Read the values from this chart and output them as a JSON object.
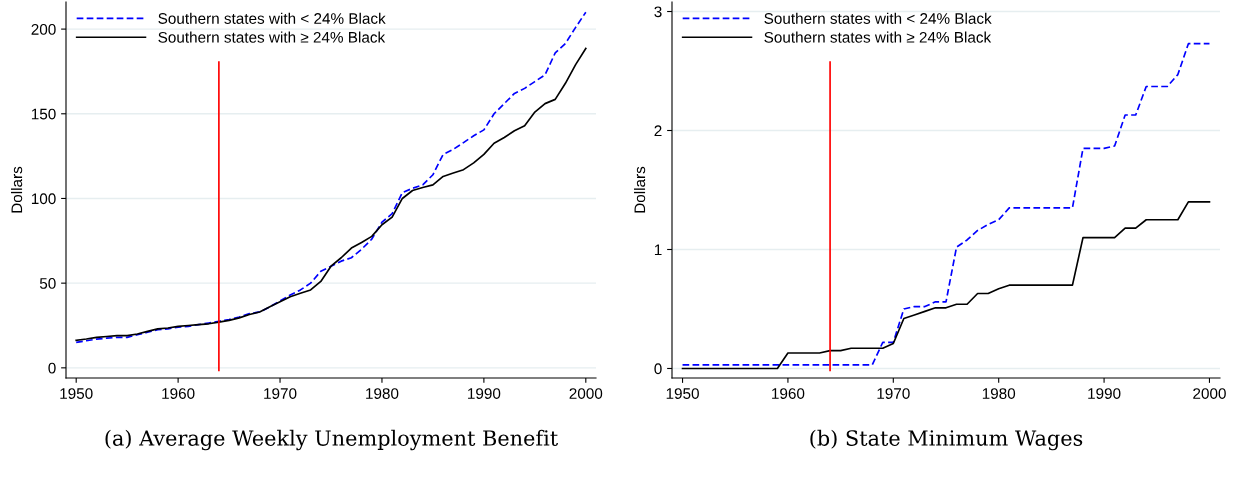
{
  "chart_data": [
    {
      "type": "line",
      "annotations": [
        "(a) Average Weekly Unemployment Benefit"
      ],
      "ylabel": "Dollars",
      "x": [
        1950,
        1951,
        1952,
        1953,
        1954,
        1955,
        1956,
        1957,
        1958,
        1959,
        1960,
        1961,
        1962,
        1963,
        1964,
        1965,
        1966,
        1967,
        1968,
        1969,
        1970,
        1971,
        1972,
        1973,
        1974,
        1975,
        1976,
        1977,
        1978,
        1979,
        1980,
        1981,
        1982,
        1983,
        1984,
        1985,
        1986,
        1987,
        1988,
        1989,
        1990,
        1991,
        1992,
        1993,
        1994,
        1995,
        1996,
        1997,
        1998,
        1999,
        2000
      ],
      "series": [
        {
          "name": "Southern states with < 24% Black",
          "color": "#0000ff",
          "line_style": "dashed",
          "values": [
            15,
            16,
            17,
            17.5,
            18,
            18,
            19.5,
            21,
            22.5,
            23,
            24,
            24.5,
            25.5,
            26.5,
            27.5,
            28.5,
            30,
            32,
            33,
            36,
            39.5,
            43,
            46,
            50,
            57,
            60,
            63,
            65,
            70,
            76,
            86,
            91,
            103.5,
            106,
            108,
            114,
            126,
            129,
            133,
            137,
            140.5,
            150,
            156,
            162,
            165,
            169,
            173,
            186,
            191.5,
            201,
            210
          ]
        },
        {
          "name": "Southern states with ≥ 24% Black",
          "color": "#000000",
          "line_style": "solid",
          "values": [
            16.3,
            17,
            18,
            18.5,
            19,
            19,
            20,
            21.5,
            23,
            23.5,
            24.5,
            25,
            25.5,
            26,
            27,
            28,
            29.5,
            31.5,
            33,
            36,
            39,
            42,
            44,
            46,
            51,
            60,
            65,
            70.7,
            74,
            77.6,
            84.5,
            89,
            100,
            104.7,
            106.5,
            108,
            113,
            115,
            117,
            121,
            126,
            132.6,
            136,
            140,
            143,
            151,
            156,
            158.5,
            168,
            179,
            188.6
          ]
        }
      ],
      "xlim": [
        1949,
        2001
      ],
      "xticks": [
        1950,
        1960,
        1970,
        1980,
        1990,
        2000
      ],
      "ylim": [
        -6,
        216
      ],
      "yticks": [
        0,
        50,
        100,
        150,
        200
      ],
      "ref_lines": [
        {
          "axis": "x",
          "value": 1964,
          "color": "#ff0000"
        }
      ],
      "grid": "y",
      "legend": "top left"
    },
    {
      "type": "line",
      "annotations": [
        "(b) State Minimum Wages"
      ],
      "ylabel": "Dollars",
      "x": [
        1950,
        1951,
        1952,
        1953,
        1954,
        1955,
        1956,
        1957,
        1958,
        1959,
        1960,
        1961,
        1962,
        1963,
        1964,
        1965,
        1966,
        1967,
        1968,
        1969,
        1970,
        1971,
        1972,
        1973,
        1974,
        1975,
        1976,
        1977,
        1978,
        1979,
        1980,
        1981,
        1982,
        1983,
        1984,
        1985,
        1986,
        1987,
        1988,
        1989,
        1990,
        1991,
        1992,
        1993,
        1994,
        1995,
        1996,
        1997,
        1998,
        1999,
        2000
      ],
      "series": [
        {
          "name": "Southern states with < 24% Black",
          "color": "#0000ff",
          "line_style": "dashed",
          "values": [
            0.03,
            0.03,
            0.03,
            0.03,
            0.03,
            0.03,
            0.03,
            0.03,
            0.03,
            0.03,
            0.03,
            0.03,
            0.03,
            0.03,
            0.03,
            0.03,
            0.03,
            0.03,
            0.03,
            0.22,
            0.22,
            0.5,
            0.52,
            0.52,
            0.56,
            0.56,
            1.02,
            1.08,
            1.16,
            1.21,
            1.25,
            1.35,
            1.35,
            1.35,
            1.35,
            1.35,
            1.35,
            1.35,
            1.85,
            1.85,
            1.85,
            1.87,
            2.13,
            2.13,
            2.37,
            2.37,
            2.37,
            2.47,
            2.73,
            2.73,
            2.73
          ]
        },
        {
          "name": "Southern states with ≥ 24% Black",
          "color": "#000000",
          "line_style": "solid",
          "values": [
            0,
            0,
            0,
            0,
            0,
            0,
            0,
            0,
            0,
            0,
            0.13,
            0.13,
            0.13,
            0.13,
            0.15,
            0.15,
            0.17,
            0.17,
            0.17,
            0.17,
            0.21,
            0.42,
            0.45,
            0.48,
            0.51,
            0.51,
            0.54,
            0.54,
            0.63,
            0.63,
            0.67,
            0.7,
            0.7,
            0.7,
            0.7,
            0.7,
            0.7,
            0.7,
            1.1,
            1.1,
            1.1,
            1.1,
            1.18,
            1.18,
            1.25,
            1.25,
            1.25,
            1.25,
            1.4,
            1.4,
            1.4
          ]
        }
      ],
      "xlim": [
        1949,
        2001
      ],
      "xticks": [
        1950,
        1960,
        1970,
        1980,
        1990,
        2000
      ],
      "ylim": [
        -0.08,
        3.08
      ],
      "yticks": [
        0,
        1,
        2,
        3
      ],
      "ref_lines": [
        {
          "axis": "x",
          "value": 1964,
          "color": "#ff0000"
        }
      ],
      "grid": "y",
      "legend": "top left"
    }
  ]
}
